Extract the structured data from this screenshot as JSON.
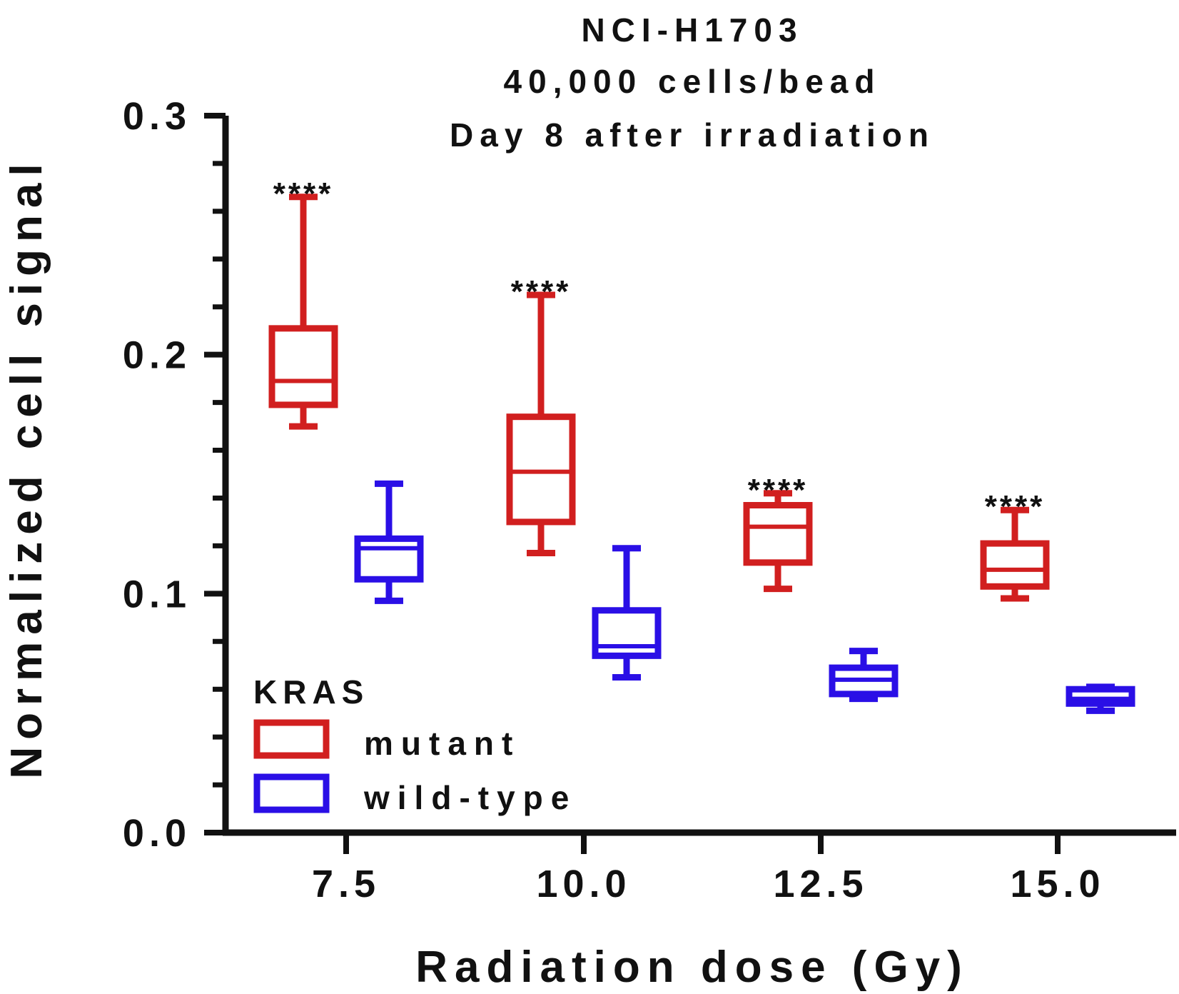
{
  "chart_data": {
    "type": "box",
    "title_lines": [
      "NCI-H1703",
      "40,000 cells/bead",
      "Day 8 after irradiation"
    ],
    "xlabel": "Radiation dose (Gy)",
    "ylabel": "Normalized cell signal",
    "categories": [
      "7.5",
      "10.0",
      "12.5",
      "15.0"
    ],
    "ylim": [
      0,
      0.3
    ],
    "yticks": [
      {
        "value": 0.0,
        "label": "0.0"
      },
      {
        "value": 0.1,
        "label": "0.1"
      },
      {
        "value": 0.2,
        "label": "0.2"
      },
      {
        "value": 0.3,
        "label": "0.3"
      }
    ],
    "legend": {
      "title": "KRAS",
      "placement": "bottom-left"
    },
    "series": [
      {
        "name": "mutant",
        "color": "#d11f1f",
        "boxes": [
          {
            "category": "7.5",
            "min": 0.17,
            "q1": 0.179,
            "median": 0.189,
            "q3": 0.211,
            "max": 0.266
          },
          {
            "category": "10.0",
            "min": 0.117,
            "q1": 0.13,
            "median": 0.151,
            "q3": 0.174,
            "max": 0.225
          },
          {
            "category": "12.5",
            "min": 0.102,
            "q1": 0.113,
            "median": 0.128,
            "q3": 0.137,
            "max": 0.142
          },
          {
            "category": "15.0",
            "min": 0.098,
            "q1": 0.103,
            "median": 0.11,
            "q3": 0.121,
            "max": 0.135
          }
        ]
      },
      {
        "name": "wild-type",
        "color": "#2a0fe6",
        "boxes": [
          {
            "category": "7.5",
            "min": 0.097,
            "q1": 0.106,
            "median": 0.119,
            "q3": 0.123,
            "max": 0.146
          },
          {
            "category": "10.0",
            "min": 0.065,
            "q1": 0.074,
            "median": 0.078,
            "q3": 0.093,
            "max": 0.119
          },
          {
            "category": "12.5",
            "min": 0.056,
            "q1": 0.058,
            "median": 0.064,
            "q3": 0.069,
            "max": 0.076
          },
          {
            "category": "15.0",
            "min": 0.051,
            "q1": 0.054,
            "median": 0.056,
            "q3": 0.06,
            "max": 0.061
          }
        ]
      }
    ],
    "annotations": [
      {
        "text": "****",
        "category": "7.5",
        "series": "mutant"
      },
      {
        "text": "****",
        "category": "10.0",
        "series": "mutant"
      },
      {
        "text": "****",
        "category": "12.5",
        "series": "mutant"
      },
      {
        "text": "****",
        "category": "15.0",
        "series": "mutant"
      }
    ]
  }
}
